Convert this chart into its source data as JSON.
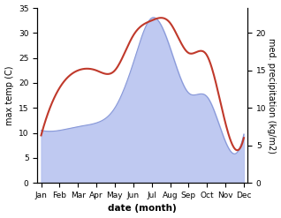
{
  "months": [
    "Jan",
    "Feb",
    "Mar",
    "Apr",
    "May",
    "Jun",
    "Jul",
    "Aug",
    "Sep",
    "Oct",
    "Nov",
    "Dec"
  ],
  "month_positions": [
    0,
    1,
    2,
    3,
    4,
    5,
    6,
    7,
    8,
    9,
    10,
    11
  ],
  "temperature": [
    9.5,
    19.0,
    22.5,
    22.5,
    22.5,
    29.5,
    32.5,
    32.0,
    26.0,
    25.5,
    12.0,
    9.0
  ],
  "precipitation": [
    7,
    7,
    7.5,
    8,
    10,
    16,
    22,
    18,
    12,
    11.5,
    5.5,
    6.5
  ],
  "temp_color": "#c0392b",
  "precip_fill_color": "#b8c4f0",
  "precip_line_color": "#8898d8",
  "left_ylabel": "max temp (C)",
  "right_ylabel": "med. precipitation (kg/m2)",
  "xlabel": "date (month)",
  "temp_ylim": [
    0,
    35
  ],
  "precip_ylim": [
    0,
    23.33
  ],
  "temp_yticks": [
    0,
    5,
    10,
    15,
    20,
    25,
    30,
    35
  ],
  "precip_yticks": [
    0,
    5,
    10,
    15,
    20
  ],
  "figsize": [
    3.18,
    2.47
  ],
  "dpi": 100
}
